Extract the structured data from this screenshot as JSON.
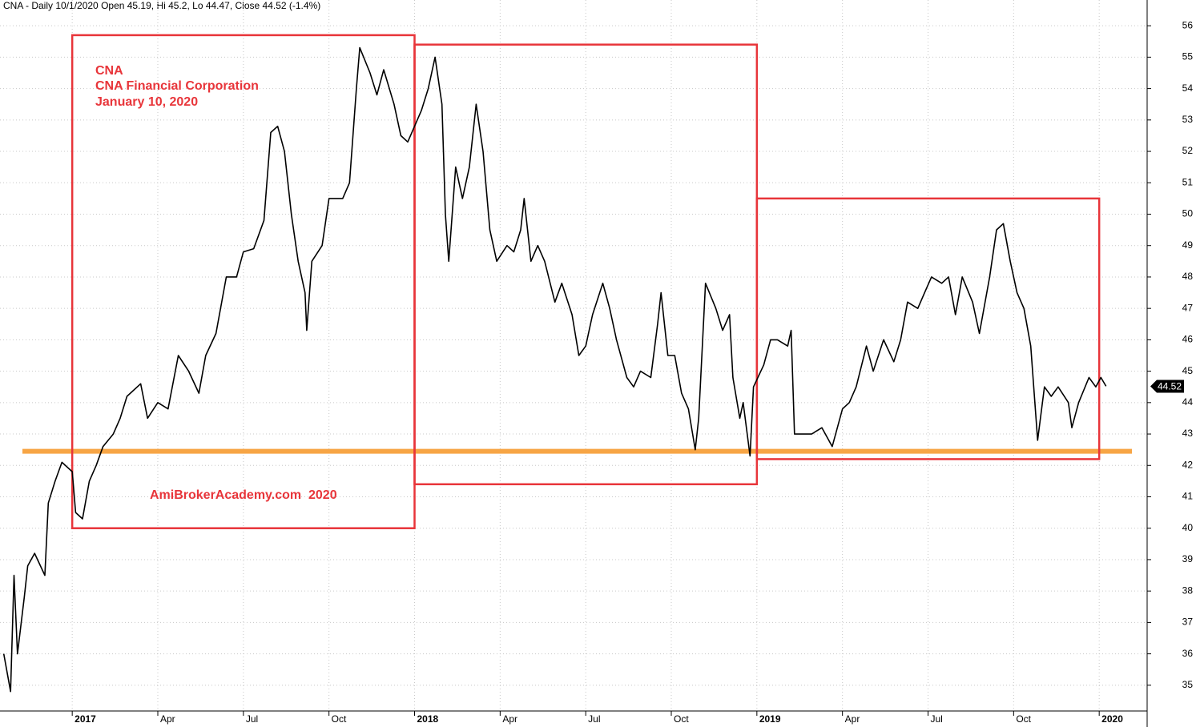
{
  "chart_data": {
    "type": "line",
    "title": "CNA - Daily 10/1/2020 Open 45.19, Hi 45.2, Lo 44.47, Close 44.52 (-1.4%)",
    "annotations": [
      "CNA",
      "CNA Financial Corporation",
      "January 10, 2020",
      "AmiBrokerAcademy.com  2020"
    ],
    "xlim": [
      2016.789,
      2020.14
    ],
    "xticks": [
      {
        "value": 2017,
        "label": "2017"
      },
      {
        "value": 2017.25,
        "label": "Apr"
      },
      {
        "value": 2017.5,
        "label": "Jul"
      },
      {
        "value": 2017.75,
        "label": "Oct"
      },
      {
        "value": 2018,
        "label": "2018"
      },
      {
        "value": 2018.25,
        "label": "Apr"
      },
      {
        "value": 2018.5,
        "label": "Jul"
      },
      {
        "value": 2018.75,
        "label": "Oct"
      },
      {
        "value": 2019,
        "label": "2019"
      },
      {
        "value": 2019.25,
        "label": "Apr"
      },
      {
        "value": 2019.5,
        "label": "Jul"
      },
      {
        "value": 2019.75,
        "label": "Oct"
      },
      {
        "value": 2020,
        "label": "2020"
      }
    ],
    "ylim": [
      34.18,
      56.82
    ],
    "yticks": [
      35,
      36,
      37,
      38,
      39,
      40,
      41,
      42,
      43,
      44,
      45,
      46,
      47,
      48,
      49,
      50,
      51,
      52,
      53,
      54,
      55,
      56
    ],
    "grid": true,
    "series": [
      {
        "name": "CNA",
        "color": "#000000",
        "x": [
          2016.8,
          2016.82,
          2016.83,
          2016.84,
          2016.86,
          2016.87,
          2016.89,
          2016.92,
          2016.93,
          2016.95,
          2016.97,
          2017.0,
          2017.01,
          2017.03,
          2017.05,
          2017.07,
          2017.09,
          2017.12,
          2017.14,
          2017.16,
          2017.2,
          2017.22,
          2017.25,
          2017.28,
          2017.31,
          2017.34,
          2017.37,
          2017.39,
          2017.42,
          2017.45,
          2017.48,
          2017.5,
          2017.53,
          2017.56,
          2017.58,
          2017.6,
          2017.62,
          2017.64,
          2017.66,
          2017.68,
          2017.685,
          2017.7,
          2017.73,
          2017.75,
          2017.79,
          2017.81,
          2017.83,
          2017.84,
          2017.87,
          2017.89,
          2017.91,
          2017.94,
          2017.96,
          2017.98,
          2018.0,
          2018.02,
          2018.04,
          2018.06,
          2018.08,
          2018.09,
          2018.1,
          2018.12,
          2018.14,
          2018.16,
          2018.18,
          2018.2,
          2018.22,
          2018.24,
          2018.27,
          2018.29,
          2018.31,
          2018.32,
          2018.34,
          2018.36,
          2018.38,
          2018.41,
          2018.43,
          2018.46,
          2018.48,
          2018.5,
          2018.52,
          2018.55,
          2018.57,
          2018.59,
          2018.62,
          2018.64,
          2018.66,
          2018.69,
          2018.71,
          2018.72,
          2018.74,
          2018.76,
          2018.78,
          2018.8,
          2018.82,
          2018.83,
          2018.85,
          2018.88,
          2018.9,
          2018.92,
          2018.93,
          2018.95,
          2018.96,
          2018.98,
          2018.99,
          2019.02,
          2019.04,
          2019.06,
          2019.09,
          2019.1,
          2019.11,
          2019.13,
          2019.16,
          2019.19,
          2019.22,
          2019.25,
          2019.27,
          2019.29,
          2019.32,
          2019.34,
          2019.37,
          2019.4,
          2019.42,
          2019.44,
          2019.47,
          2019.49,
          2019.51,
          2019.54,
          2019.56,
          2019.58,
          2019.6,
          2019.63,
          2019.65,
          2019.68,
          2019.7,
          2019.72,
          2019.74,
          2019.76,
          2019.78,
          2019.8,
          2019.82,
          2019.84,
          2019.86,
          2019.88,
          2019.91,
          2019.92,
          2019.94,
          2019.97,
          2019.99,
          2020.005,
          2020.02
        ],
        "values": [
          36.0,
          34.8,
          38.5,
          36.0,
          37.8,
          38.8,
          39.2,
          38.5,
          40.8,
          41.5,
          42.1,
          41.8,
          40.5,
          40.3,
          41.5,
          42.0,
          42.6,
          43.0,
          43.5,
          44.2,
          44.6,
          43.5,
          44.0,
          43.8,
          45.5,
          45.0,
          44.3,
          45.5,
          46.2,
          48.0,
          48.0,
          48.8,
          48.9,
          49.8,
          52.6,
          52.8,
          52.0,
          50.0,
          48.5,
          47.5,
          46.3,
          48.5,
          49.0,
          50.5,
          50.5,
          51.0,
          54.0,
          55.3,
          54.5,
          53.8,
          54.6,
          53.5,
          52.5,
          52.3,
          52.8,
          53.3,
          54.0,
          55.0,
          53.5,
          50.0,
          48.5,
          51.5,
          50.5,
          51.5,
          53.5,
          52.0,
          49.5,
          48.5,
          49.0,
          48.8,
          49.5,
          50.5,
          48.5,
          49.0,
          48.5,
          47.2,
          47.8,
          46.8,
          45.5,
          45.8,
          46.8,
          47.8,
          47.0,
          46.0,
          44.8,
          44.5,
          45.0,
          44.8,
          46.5,
          47.5,
          45.5,
          45.5,
          44.3,
          43.8,
          42.5,
          43.5,
          47.8,
          47.0,
          46.3,
          46.8,
          44.8,
          43.5,
          44.0,
          42.3,
          44.5,
          45.2,
          46.0,
          46.0,
          45.8,
          46.3,
          43.0,
          43.0,
          43.0,
          43.2,
          42.6,
          43.8,
          44.0,
          44.5,
          45.8,
          45.0,
          46.0,
          45.3,
          46.0,
          47.2,
          47.0,
          47.5,
          48.0,
          47.8,
          48.0,
          46.8,
          48.0,
          47.2,
          46.2,
          48.0,
          49.5,
          49.7,
          48.5,
          47.5,
          47.0,
          45.8,
          42.8,
          44.5,
          44.2,
          44.5,
          44.0,
          43.2,
          44.0,
          44.8,
          44.5,
          44.8,
          44.52
        ]
      }
    ],
    "last_price": 44.52,
    "boxes": [
      {
        "x": [
          2017,
          2018
        ],
        "y": [
          40.0,
          55.7
        ],
        "color": "#e8353a"
      },
      {
        "x": [
          2018,
          2019
        ],
        "y": [
          41.4,
          55.4
        ],
        "color": "#e8353a"
      },
      {
        "x": [
          2019,
          2020
        ],
        "y": [
          42.2,
          50.5
        ],
        "color": "#e8353a"
      }
    ],
    "support_level": 42.45,
    "support_color": "#f7a545"
  }
}
